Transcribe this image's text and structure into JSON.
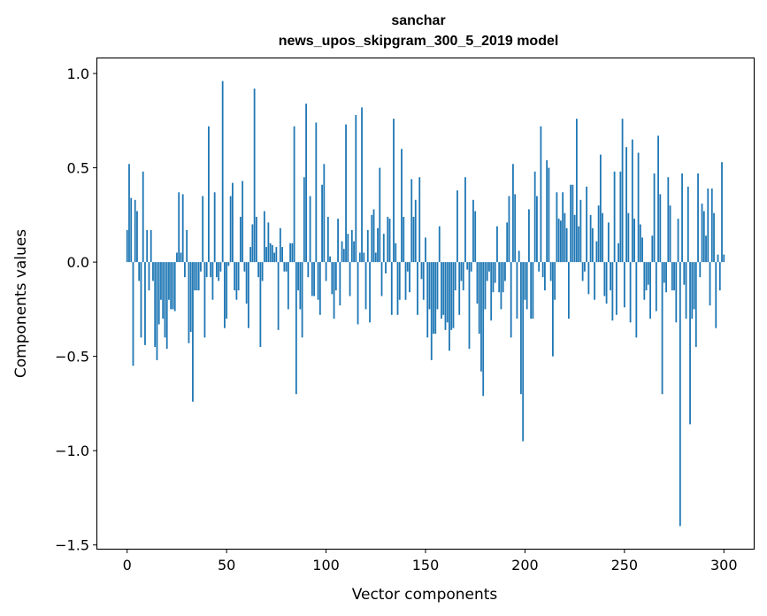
{
  "chart_data": {
    "type": "bar",
    "title": [
      "sanchar",
      "news_upos_skipgram_300_5_2019 model"
    ],
    "xlabel": "Vector components",
    "ylabel": "Components values",
    "xlim": [
      -15,
      315
    ],
    "ylim": [
      -1.52,
      1.08
    ],
    "xticks": [
      {
        "value": 0,
        "label": "0"
      },
      {
        "value": 50,
        "label": "50"
      },
      {
        "value": 100,
        "label": "100"
      },
      {
        "value": 150,
        "label": "150"
      },
      {
        "value": 200,
        "label": "200"
      },
      {
        "value": 250,
        "label": "250"
      },
      {
        "value": 300,
        "label": "300"
      }
    ],
    "yticks": [
      {
        "value": 1.0,
        "label": "1.0"
      },
      {
        "value": 0.5,
        "label": "0.5"
      },
      {
        "value": 0.0,
        "label": "0.0"
      },
      {
        "value": -0.5,
        "label": "−0.5"
      },
      {
        "value": -1.0,
        "label": "−1.0"
      },
      {
        "value": -1.5,
        "label": "−1.5"
      }
    ],
    "bar_color": "#1f77b4",
    "grid": false,
    "legend": "none",
    "x_start": 0,
    "values": [
      0.17,
      0.52,
      0.34,
      -0.55,
      0.33,
      0.27,
      -0.1,
      -0.4,
      0.48,
      -0.44,
      0.17,
      -0.15,
      0.17,
      -0.1,
      -0.45,
      -0.52,
      -0.33,
      -0.2,
      -0.3,
      -0.4,
      -0.46,
      -0.2,
      -0.25,
      -0.25,
      -0.26,
      0.05,
      0.37,
      0.05,
      0.36,
      -0.08,
      0.17,
      -0.43,
      -0.37,
      -0.74,
      -0.15,
      -0.15,
      -0.15,
      -0.05,
      0.35,
      -0.4,
      -0.08,
      0.72,
      -0.08,
      -0.2,
      0.37,
      -0.08,
      -0.1,
      -0.05,
      0.96,
      -0.35,
      -0.3,
      -0.02,
      0.35,
      0.42,
      -0.15,
      -0.2,
      -0.15,
      0.24,
      0.43,
      -0.05,
      -0.22,
      -0.35,
      0.08,
      0.2,
      0.92,
      0.24,
      -0.08,
      -0.45,
      -0.1,
      0.27,
      0.08,
      0.21,
      0.1,
      0.09,
      0.05,
      0.08,
      -0.36,
      0.18,
      0.08,
      -0.05,
      -0.05,
      -0.25,
      0.1,
      0.1,
      0.72,
      -0.7,
      -0.15,
      -0.25,
      -0.4,
      0.45,
      0.84,
      -0.08,
      0.35,
      -0.18,
      -0.18,
      0.74,
      -0.2,
      -0.28,
      0.41,
      0.52,
      -0.1,
      0.24,
      0.03,
      -0.17,
      -0.3,
      -0.15,
      0.23,
      -0.23,
      0.11,
      0.07,
      0.73,
      0.15,
      -0.18,
      0.17,
      0.11,
      0.78,
      -0.33,
      0.05,
      0.82,
      0.05,
      -0.25,
      0.17,
      -0.32,
      0.25,
      0.28,
      0.05,
      0.18,
      0.5,
      -0.18,
      0.15,
      -0.06,
      0.24,
      0.23,
      -0.28,
      0.76,
      0.1,
      -0.28,
      -0.2,
      0.6,
      0.24,
      -0.2,
      -0.05,
      -0.16,
      0.44,
      0.24,
      0.33,
      -0.28,
      0.45,
      -0.09,
      -0.2,
      0.13,
      -0.4,
      -0.25,
      -0.52,
      -0.38,
      -0.38,
      -0.25,
      0.19,
      -0.3,
      -0.28,
      -0.36,
      -0.32,
      -0.47,
      -0.36,
      -0.35,
      -0.15,
      0.38,
      -0.28,
      -0.1,
      -0.15,
      0.45,
      -0.04,
      -0.46,
      -0.05,
      0.33,
      0.27,
      -0.22,
      -0.38,
      -0.58,
      -0.71,
      -0.25,
      -0.1,
      -0.05,
      -0.31,
      -0.16,
      -0.11,
      0.19,
      -0.16,
      -0.25,
      -0.16,
      -0.1,
      0.21,
      0.35,
      -0.4,
      0.52,
      0.36,
      -0.3,
      0.06,
      -0.7,
      -0.95,
      -0.2,
      -0.25,
      0.28,
      -0.3,
      -0.3,
      0.48,
      0.35,
      -0.05,
      0.72,
      -0.08,
      -0.15,
      0.54,
      0.5,
      -0.1,
      -0.5,
      -0.2,
      0.37,
      0.23,
      0.22,
      0.37,
      0.26,
      0.18,
      -0.3,
      0.41,
      0.41,
      0.25,
      0.76,
      0.19,
      0.33,
      -0.1,
      -0.05,
      0.4,
      -0.17,
      0.25,
      0.18,
      -0.2,
      0.11,
      0.3,
      0.57,
      0.26,
      -0.18,
      -0.22,
      0.21,
      -0.15,
      -0.31,
      0.48,
      -0.28,
      0.1,
      0.48,
      0.76,
      -0.24,
      0.61,
      0.26,
      -0.32,
      0.65,
      0.23,
      -0.4,
      0.58,
      0.2,
      0.13,
      -0.2,
      -0.15,
      -0.12,
      -0.3,
      0.14,
      0.47,
      -0.26,
      0.67,
      0.36,
      -0.7,
      -0.11,
      -0.16,
      0.45,
      0.3,
      -0.15,
      -0.15,
      -0.32,
      0.23,
      -1.4,
      0.47,
      -0.12,
      -0.3,
      0.4,
      -0.86,
      -0.3,
      -0.25,
      -0.45,
      0.47,
      -0.08,
      0.31,
      0.27,
      0.14,
      0.39,
      -0.23,
      0.39,
      0.26,
      -0.35,
      0.04,
      -0.15,
      0.53,
      0.04
    ]
  }
}
